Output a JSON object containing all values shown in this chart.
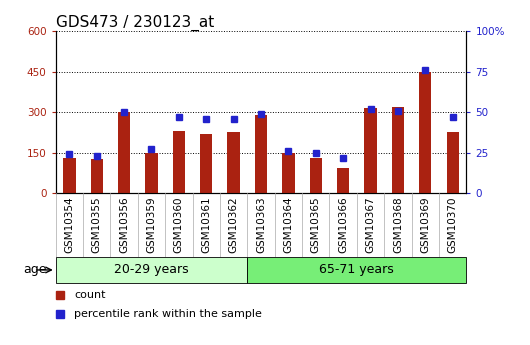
{
  "title": "GDS473 / 230123_at",
  "categories": [
    "GSM10354",
    "GSM10355",
    "GSM10356",
    "GSM10359",
    "GSM10360",
    "GSM10361",
    "GSM10362",
    "GSM10363",
    "GSM10364",
    "GSM10365",
    "GSM10366",
    "GSM10367",
    "GSM10368",
    "GSM10369",
    "GSM10370"
  ],
  "counts": [
    130,
    128,
    300,
    148,
    230,
    220,
    225,
    290,
    148,
    132,
    95,
    315,
    320,
    450,
    225
  ],
  "percentile_ranks": [
    24,
    23,
    50,
    27,
    47,
    46,
    46,
    49,
    26,
    25,
    22,
    52,
    51,
    76,
    47
  ],
  "bar_color": "#aa2211",
  "marker_color": "#2222cc",
  "ylim_left": [
    0,
    600
  ],
  "ylim_right": [
    0,
    100
  ],
  "yticks_left": [
    0,
    150,
    300,
    450,
    600
  ],
  "yticks_right": [
    0,
    25,
    50,
    75,
    100
  ],
  "ytick_labels_right": [
    "0",
    "25",
    "50",
    "75",
    "100%"
  ],
  "groups": [
    {
      "label": "20-29 years",
      "start": 0,
      "end": 7,
      "color": "#ccffcc"
    },
    {
      "label": "65-71 years",
      "start": 7,
      "end": 15,
      "color": "#77ee77"
    }
  ],
  "age_label": "age",
  "legend_items": [
    {
      "label": "count",
      "color": "#aa2211"
    },
    {
      "label": "percentile rank within the sample",
      "color": "#2222cc"
    }
  ],
  "bg_color": "#ffffff",
  "plot_bg_color": "#ffffff",
  "xticklabel_bg": "#dddddd",
  "grid_color": "#000000",
  "title_fontsize": 11,
  "tick_fontsize": 7.5,
  "label_fontsize": 9
}
